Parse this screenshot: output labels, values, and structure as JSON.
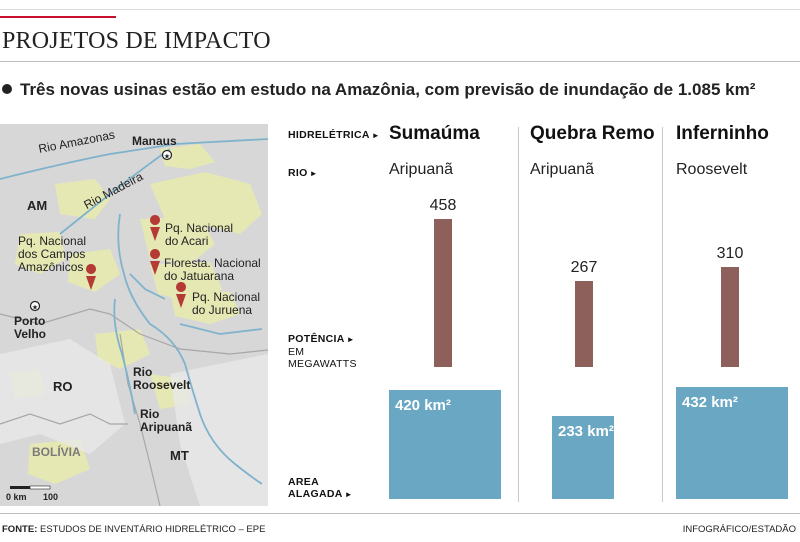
{
  "header": {
    "title": "PROJETOS DE IMPACTO",
    "subtitle": "Três novas usinas estão em estudo na Amazônia, com previsão de inundação de 1.085 km²"
  },
  "colors": {
    "accent": "#c8102e",
    "power_bar": "#8d605c",
    "area_box": "#6aa7c2",
    "map_land": "#d7d7d7",
    "map_park": "#e6e8b4",
    "map_river": "#7fb3cc"
  },
  "map": {
    "cities": {
      "manaus": "Manaus",
      "porto_velho": "Porto\nVelho"
    },
    "rivers": {
      "amazonas": "Rio Amazonas",
      "madeira": "Rio Madeira",
      "roosevelt": "Rio\nRoosevelt",
      "aripuana": "Rio\nAripuanã"
    },
    "regions": {
      "am": "AM",
      "ro": "RO",
      "mt": "MT",
      "bolivia": "BOLÍVIA"
    },
    "parks": {
      "campos": "Pq. Nacional\ndos Campos\nAmazônicos",
      "acari": "Pq. Nacional\ndo Acari",
      "jatuarana": "Floresta. Nacional\ndo Jatuarana",
      "juruena": "Pq. Nacional\ndo Juruena"
    },
    "scale": {
      "zero": "0 km",
      "hundred": "100"
    }
  },
  "row_labels": {
    "plant": "HIDRELÉTRICA",
    "river": "RIO",
    "power": "POTÊNCIA",
    "power_unit": "EM MEGAWATTS",
    "area_1": "AREA",
    "area_2": "ALAGADA"
  },
  "chart_data": {
    "type": "bar",
    "categories": [
      "Sumaúma",
      "Quebra Remo",
      "Inferninho"
    ],
    "rivers": [
      "Aripuanã",
      "Aripuanã",
      "Roosevelt"
    ],
    "series": [
      {
        "name": "POTÊNCIA EM MEGAWATTS",
        "values": [
          458,
          267,
          310
        ]
      },
      {
        "name": "AREA ALAGADA",
        "values": [
          420,
          233,
          432
        ],
        "labels": [
          "420 km²",
          "233 km²",
          "432 km²"
        ]
      }
    ]
  },
  "footer": {
    "source_label": "FONTE:",
    "source_text": "ESTUDOS DE INVENTÁRIO HIDRELÉTRICO – EPE",
    "credit": "INFOGRÁFICO/ESTADÃO"
  }
}
